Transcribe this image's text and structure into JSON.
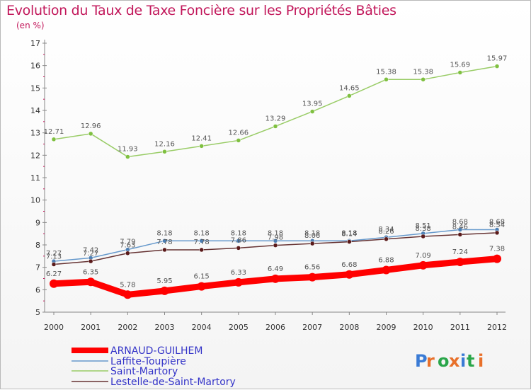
{
  "header": {
    "title": "Evolution du Taux de Taxe Foncière sur les Propriétés Bâties",
    "unit": "(en %)"
  },
  "logo": {
    "text": "Proxiti"
  },
  "chart_data": {
    "type": "line",
    "title": "Evolution du Taux de Taxe Foncière sur les Propriétés Bâties",
    "ylabel": "(en %)",
    "xlabel": "",
    "x": [
      "2000",
      "2001",
      "2002",
      "2003",
      "2004",
      "2005",
      "2006",
      "2007",
      "2008",
      "2009",
      "2010",
      "2011",
      "2012"
    ],
    "yticks": [
      5,
      6,
      7,
      8,
      9,
      10,
      11,
      12,
      13,
      14,
      15,
      16,
      17
    ],
    "ylim": [
      5,
      17
    ],
    "grid": false,
    "legend_position": "bottom-left",
    "series": [
      {
        "name": "ARNAUD-GUILHEM",
        "color": "#ff0000",
        "values": [
          6.27,
          6.35,
          5.78,
          5.95,
          6.15,
          6.33,
          6.49,
          6.56,
          6.68,
          6.88,
          7.09,
          7.24,
          7.38
        ]
      },
      {
        "name": "Laffite-Toupière",
        "color": "#6699cc",
        "values": [
          7.27,
          7.42,
          7.79,
          8.18,
          8.18,
          8.18,
          8.18,
          8.18,
          8.18,
          8.34,
          8.51,
          8.68,
          8.68
        ]
      },
      {
        "name": "Saint-Martory",
        "color": "#99cc66",
        "values": [
          12.71,
          12.96,
          11.93,
          12.16,
          12.41,
          12.66,
          13.29,
          13.95,
          14.65,
          15.38,
          15.38,
          15.69,
          15.97
        ]
      },
      {
        "name": "Lestelle-de-Saint-Martory",
        "color": "#663333",
        "values": [
          7.13,
          7.27,
          7.63,
          7.78,
          7.78,
          7.86,
          7.98,
          8.06,
          8.14,
          8.26,
          8.38,
          8.46,
          8.54
        ]
      }
    ]
  }
}
